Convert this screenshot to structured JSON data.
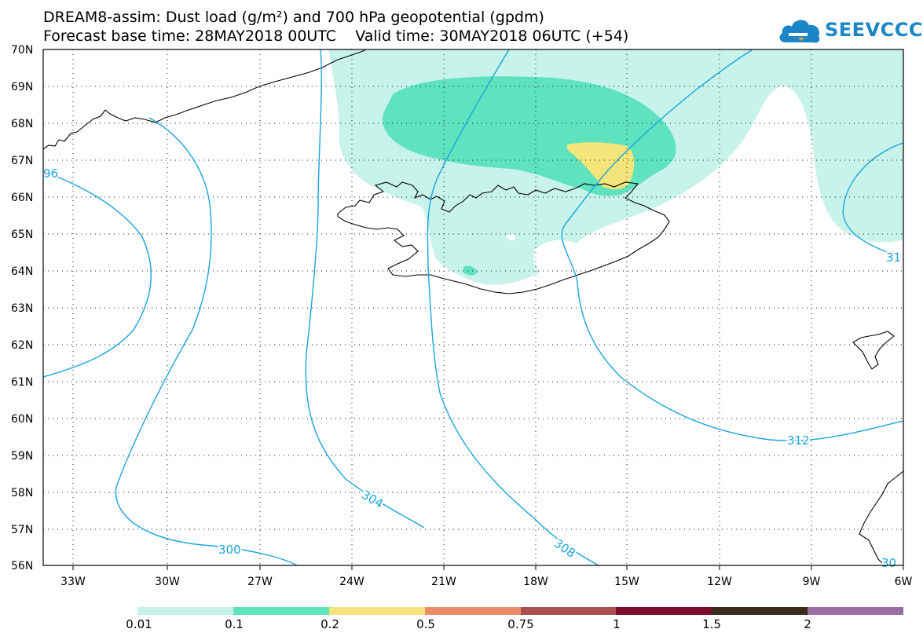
{
  "header": {
    "line1": "DREAM8-assim: Dust load (g/m²) and 700 hPa geopotential (gpdm)",
    "line2": "Forecast base time: 28MAY2018 00UTC    Valid time: 30MAY2018 06UTC (+54)"
  },
  "logo": {
    "text": "SEEVCCC",
    "icon": "cloud-logo-icon",
    "color": "#1a86c8"
  },
  "map": {
    "lat_labels": [
      "70N",
      "69N",
      "68N",
      "67N",
      "66N",
      "65N",
      "64N",
      "63N",
      "62N",
      "61N",
      "60N",
      "59N",
      "58N",
      "57N",
      "56N"
    ],
    "lon_labels": [
      "33W",
      "30W",
      "27W",
      "24W",
      "21W",
      "18W",
      "15W",
      "12W",
      "9W",
      "6W"
    ],
    "contour_labels": [
      "300",
      "304",
      "308",
      "312",
      "96",
      "31",
      "30"
    ],
    "contour_color": "#18a4e0",
    "dust_colors": {
      "low": "#c7f3ea",
      "mid": "#5fe3be",
      "high": "#f4e47a"
    },
    "regions": [
      "Iceland",
      "Greenland",
      "Faroe Islands",
      "Scotland"
    ]
  },
  "legend": {
    "labels": [
      "0.01",
      "0.1",
      "0.2",
      "0.5",
      "0.75",
      "1",
      "1.5",
      "2"
    ],
    "colors": [
      "#c6f2ea",
      "#5fe3bf",
      "#f4e47b",
      "#ee8c6a",
      "#a8504f",
      "#7c0d2c",
      "#3a2a1c",
      "#9a6ea2"
    ]
  }
}
